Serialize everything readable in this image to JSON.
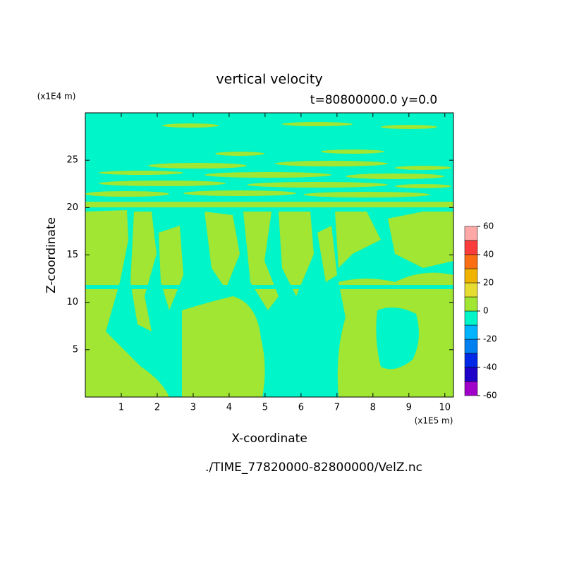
{
  "chart_data": {
    "type": "contour",
    "title": "vertical velocity",
    "subtitle": "t=80800000.0 y=0.0",
    "x_label": "X-coordinate",
    "y_label": "Z-coordinate",
    "x_unit": "(x1E5 m)",
    "y_unit": "(x1E4 m)",
    "source": "./TIME_77820000-82800000/VelZ.nc",
    "xlim": [
      0,
      10.24
    ],
    "ylim": [
      0,
      30
    ],
    "xticks": [
      1,
      2,
      3,
      4,
      5,
      6,
      7,
      8,
      9,
      10
    ],
    "yticks": [
      5,
      10,
      15,
      20,
      25
    ],
    "colorbar": {
      "levels": [
        -60,
        -50,
        -40,
        -30,
        -20,
        -10,
        0,
        10,
        20,
        30,
        40,
        50,
        60
      ],
      "colors": [
        "#a000c8",
        "#1e00c8",
        "#0028e6",
        "#0080f0",
        "#00b4ff",
        "#00f5c8",
        "#a0e632",
        "#e6dc32",
        "#f0b400",
        "#fa6e14",
        "#fa3c3c",
        "#ffa8a8"
      ],
      "ticks": [
        -60,
        -40,
        -20,
        0,
        20,
        40,
        60
      ]
    }
  }
}
